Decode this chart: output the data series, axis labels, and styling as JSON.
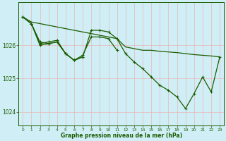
{
  "title": "Graphe pression niveau de la mer (hPa)",
  "background_color": "#d0eef5",
  "grid_color": "#e8b8b8",
  "line_color": "#1a5c00",
  "xlim": [
    -0.5,
    23.5
  ],
  "ylim": [
    1023.6,
    1027.3
  ],
  "yticks": [
    1024,
    1025,
    1026
  ],
  "xticks": [
    0,
    1,
    2,
    3,
    4,
    5,
    6,
    7,
    8,
    9,
    10,
    11,
    12,
    13,
    14,
    15,
    16,
    17,
    18,
    19,
    20,
    21,
    22,
    23
  ],
  "series": [
    {
      "x": [
        0,
        1,
        2,
        3,
        4,
        5,
        6,
        7,
        8,
        9,
        10,
        11,
        12,
        13,
        14,
        15,
        16,
        17,
        18,
        19,
        20,
        21,
        22,
        23
      ],
      "y": [
        1026.85,
        1026.7,
        1026.65,
        1026.6,
        1026.55,
        1026.5,
        1026.45,
        1026.4,
        1026.35,
        1026.3,
        1026.25,
        1026.2,
        1025.95,
        1025.9,
        1025.85,
        1025.85,
        1025.82,
        1025.8,
        1025.78,
        1025.75,
        1025.72,
        1025.7,
        1025.68,
        1025.65
      ],
      "marker": false,
      "linewidth": 0.9
    },
    {
      "x": [
        0,
        1,
        2,
        3,
        4,
        5,
        6,
        7,
        8,
        9,
        10,
        11,
        12,
        13,
        14,
        15,
        16,
        17,
        18,
        19,
        20,
        21,
        22,
        23
      ],
      "y": [
        1026.85,
        1026.65,
        1026.1,
        1026.05,
        1026.1,
        1025.75,
        1025.55,
        1025.65,
        1026.45,
        1026.45,
        1026.4,
        1026.2,
        1025.75,
        1025.5,
        1025.3,
        1025.05,
        1024.8,
        1024.65,
        1024.45,
        1024.1,
        1024.55,
        1025.05,
        1024.6,
        1025.65
      ],
      "marker": true,
      "linewidth": 0.9
    },
    {
      "x": [
        0,
        1,
        2,
        3,
        4,
        5,
        6,
        7,
        8,
        9,
        10,
        11
      ],
      "y": [
        1026.85,
        1026.65,
        1026.0,
        1026.05,
        1026.1,
        1025.75,
        1025.55,
        1025.7,
        1026.25,
        1026.25,
        1026.2,
        1025.85
      ],
      "marker": true,
      "linewidth": 0.9
    },
    {
      "x": [
        0,
        1,
        2,
        3,
        4,
        5,
        6,
        7
      ],
      "y": [
        1026.85,
        1026.65,
        1026.05,
        1026.1,
        1026.15,
        1025.75,
        1025.55,
        1025.65
      ],
      "marker": true,
      "linewidth": 0.9
    }
  ]
}
